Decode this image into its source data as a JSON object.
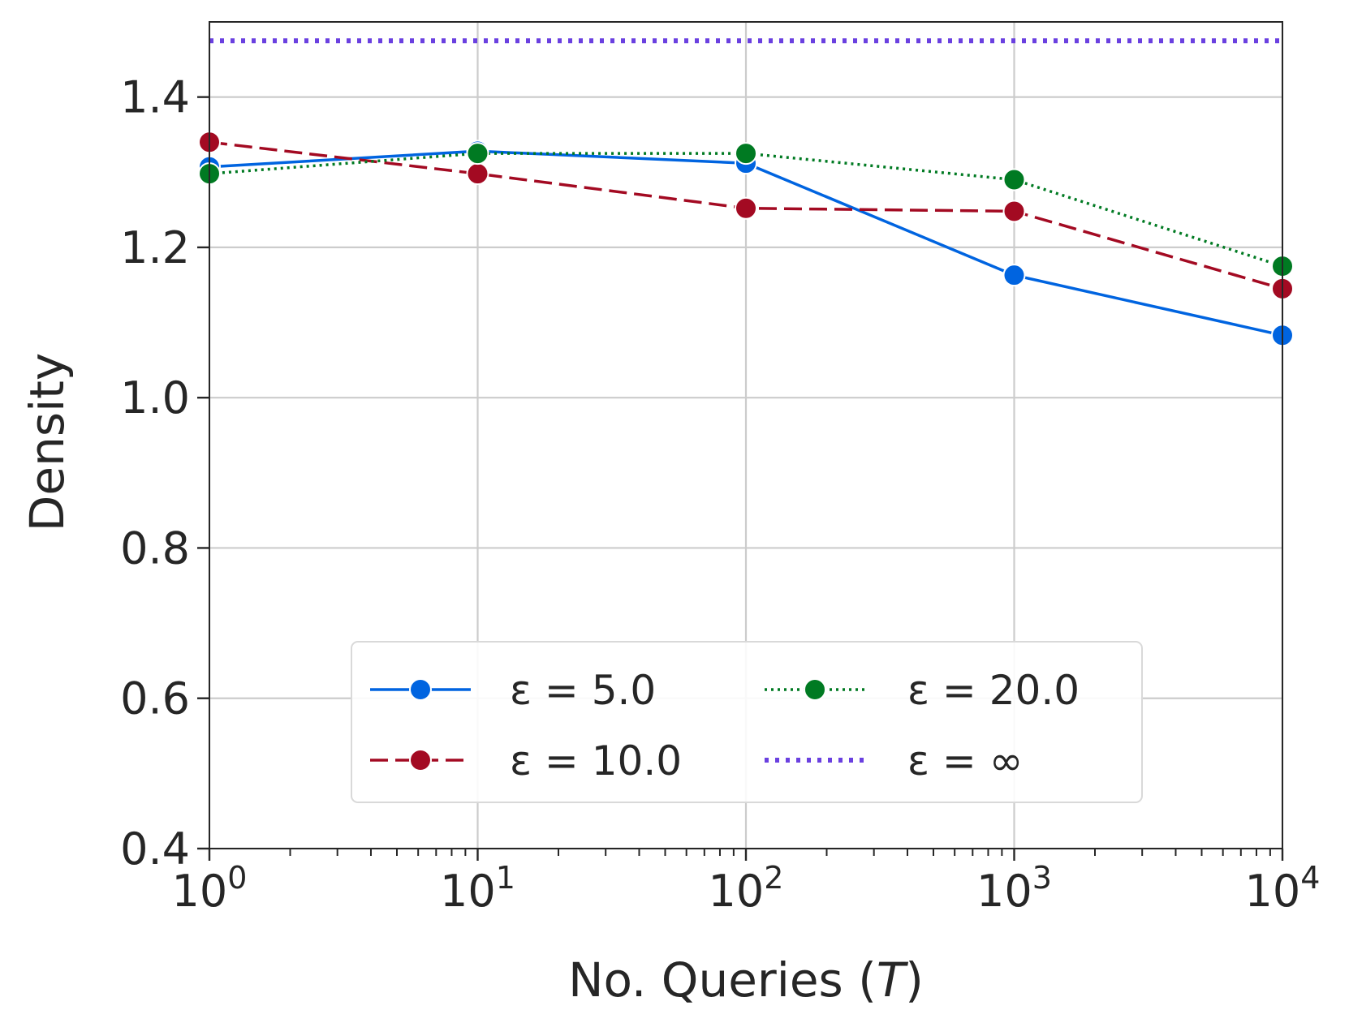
{
  "chart_data": {
    "type": "line",
    "title": "",
    "xlabel": "No. Queries (T)",
    "xlabel_prefix": "No. Queries (",
    "xlabel_var": "T",
    "xlabel_suffix": ")",
    "ylabel": "Density",
    "xscale": "log",
    "xlim": [
      1,
      10000
    ],
    "ylim": [
      0.4,
      1.5
    ],
    "grid": true,
    "legend_position": "lower-center",
    "legend_columns": 2,
    "x": [
      1,
      10,
      100,
      1000,
      10000
    ],
    "x_tick_labels": [
      {
        "base": "10",
        "exp": "0"
      },
      {
        "base": "10",
        "exp": "1"
      },
      {
        "base": "10",
        "exp": "2"
      },
      {
        "base": "10",
        "exp": "3"
      },
      {
        "base": "10",
        "exp": "4"
      }
    ],
    "y_ticks": [
      0.4,
      0.6,
      0.8,
      1.0,
      1.2,
      1.4
    ],
    "y_tick_labels": [
      "0.4",
      "0.6",
      "0.8",
      "1.0",
      "1.2",
      "1.4"
    ],
    "series": [
      {
        "name": "ε =  5.0",
        "color": "#0064e0",
        "style": "solid",
        "marker": true,
        "values": [
          1.307,
          1.328,
          1.312,
          1.163,
          1.083
        ]
      },
      {
        "name": "ε =  10.0",
        "color": "#a30a22",
        "style": "dashed",
        "marker": true,
        "values": [
          1.34,
          1.298,
          1.252,
          1.248,
          1.145
        ]
      },
      {
        "name": "ε =  20.0",
        "color": "#007a22",
        "style": "dotted",
        "marker": true,
        "values": [
          1.298,
          1.325,
          1.325,
          1.29,
          1.175
        ]
      },
      {
        "name": "ε = ∞",
        "color": "#6a40e0",
        "style": "dotted-thick",
        "marker": false,
        "values": [
          1.475,
          1.475,
          1.475,
          1.475,
          1.475
        ]
      }
    ]
  }
}
